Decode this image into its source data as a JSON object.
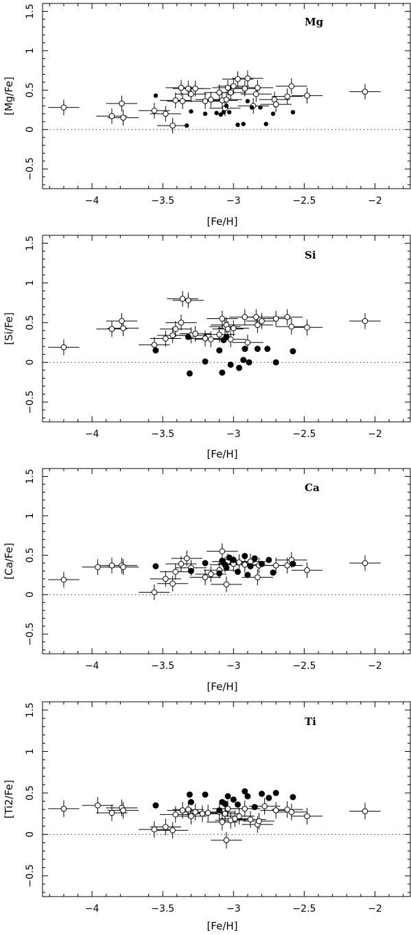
{
  "chart_data": [
    {
      "type": "scatter",
      "element": "Mg",
      "xlabel": "[Fe/H]",
      "ylabel": "[Mg/Fe]",
      "xlim": [
        -4.35,
        -1.75
      ],
      "ylim": [
        -0.75,
        1.6
      ],
      "xticks": [
        -4,
        -3.5,
        -3,
        -2.5,
        -2
      ],
      "xtick_labels": [
        "−4",
        "−3.5",
        "−3",
        "−2.5",
        "−2"
      ],
      "yticks": [
        -0.5,
        0,
        0.5,
        1,
        1.5
      ],
      "ytick_labels": [
        "−0.5",
        "0",
        "0.5",
        "1",
        "1.5"
      ],
      "grid": false,
      "reference_line": 0,
      "series": [
        {
          "marker": "open-circle-errorbars",
          "x": [
            -4.2,
            -3.86,
            -3.79,
            -3.78,
            -3.56,
            -3.48,
            -3.43,
            -3.41,
            -3.37,
            -3.36,
            -3.32,
            -3.3,
            -3.27,
            -3.2,
            -3.16,
            -3.1,
            -3.08,
            -3.06,
            -3.05,
            -3.04,
            -3.02,
            -3.0,
            -2.97,
            -2.92,
            -2.9,
            -2.86,
            -2.84,
            -2.83,
            -2.71,
            -2.7,
            -2.62,
            -2.59,
            -2.48,
            -2.07
          ],
          "y": [
            0.28,
            0.17,
            0.33,
            0.15,
            0.24,
            0.2,
            0.05,
            0.37,
            0.53,
            0.36,
            0.52,
            0.45,
            0.52,
            0.36,
            0.38,
            0.47,
            0.37,
            0.27,
            0.38,
            0.53,
            0.47,
            0.55,
            0.64,
            0.52,
            0.65,
            0.3,
            0.45,
            0.53,
            0.38,
            0.32,
            0.42,
            0.55,
            0.43,
            0.48
          ],
          "xerr": 0.11,
          "yerr": 0.1
        },
        {
          "marker": "filled-circle",
          "x": [
            -3.55,
            -3.33,
            -3.3,
            -3.2,
            -3.12,
            -3.09,
            -3.07,
            -3.05,
            -3.03,
            -2.97,
            -2.93,
            -2.9,
            -2.87,
            -2.81,
            -2.77,
            -2.72,
            -2.58
          ],
          "y": [
            0.43,
            0.05,
            0.23,
            0.2,
            0.21,
            0.19,
            0.22,
            0.3,
            0.22,
            0.06,
            0.07,
            0.36,
            0.28,
            0.28,
            0.07,
            0.2,
            0.22
          ]
        }
      ]
    },
    {
      "type": "scatter",
      "element": "Si",
      "xlabel": "[Fe/H]",
      "ylabel": "[Si/Fe]",
      "xlim": [
        -4.35,
        -1.75
      ],
      "ylim": [
        -0.75,
        1.6
      ],
      "xticks": [
        -4,
        -3.5,
        -3,
        -2.5,
        -2
      ],
      "xtick_labels": [
        "−4",
        "−3.5",
        "−3",
        "−2.5",
        "−2"
      ],
      "yticks": [
        -0.5,
        0,
        0.5,
        1,
        1.5
      ],
      "ytick_labels": [
        "−0.5",
        "0",
        "0.5",
        "1",
        "1.5"
      ],
      "grid": false,
      "reference_line": 0,
      "series": [
        {
          "marker": "open-circle-errorbars",
          "x": [
            -4.2,
            -3.86,
            -3.79,
            -3.78,
            -3.56,
            -3.48,
            -3.43,
            -3.41,
            -3.37,
            -3.36,
            -3.32,
            -3.3,
            -3.27,
            -3.2,
            -3.16,
            -3.1,
            -3.08,
            -3.06,
            -3.05,
            -3.04,
            -3.02,
            -3.0,
            -2.92,
            -2.9,
            -2.84,
            -2.83,
            -2.8,
            -2.7,
            -2.62,
            -2.59,
            -2.48,
            -2.07
          ],
          "y": [
            0.19,
            0.42,
            0.52,
            0.43,
            0.22,
            0.3,
            0.34,
            0.42,
            0.5,
            0.8,
            0.78,
            0.34,
            0.36,
            0.3,
            0.29,
            0.35,
            0.55,
            0.45,
            0.47,
            0.42,
            0.29,
            0.43,
            0.57,
            0.25,
            0.57,
            0.47,
            0.52,
            0.55,
            0.57,
            0.45,
            0.44,
            0.52
          ],
          "xerr": 0.11,
          "yerr": 0.1
        },
        {
          "marker": "filled-circle",
          "x": [
            -3.55,
            -3.32,
            -3.31,
            -3.2,
            -3.1,
            -3.08,
            -3.07,
            -3.05,
            -3.02,
            -2.96,
            -2.93,
            -2.92,
            -2.89,
            -2.83,
            -2.76,
            -2.7,
            -2.58
          ],
          "y": [
            0.15,
            0.32,
            -0.14,
            0.01,
            0.15,
            -0.13,
            0.28,
            0.32,
            -0.03,
            -0.07,
            0.03,
            0.17,
            0.0,
            0.17,
            0.17,
            0.0,
            0.14
          ]
        }
      ]
    },
    {
      "type": "scatter",
      "element": "Ca",
      "xlabel": "[Fe/H]",
      "ylabel": "[Ca/Fe]",
      "xlim": [
        -4.35,
        -1.75
      ],
      "ylim": [
        -0.75,
        1.6
      ],
      "xticks": [
        -4,
        -3.5,
        -3,
        -2.5,
        -2
      ],
      "xtick_labels": [
        "−4",
        "−3.5",
        "−3",
        "−2.5",
        "−2"
      ],
      "yticks": [
        -0.5,
        0,
        0.5,
        1,
        1.5
      ],
      "ytick_labels": [
        "−0.5",
        "0",
        "0.5",
        "1",
        "1.5"
      ],
      "grid": false,
      "reference_line": 0,
      "series": [
        {
          "marker": "open-circle-errorbars",
          "x": [
            -4.2,
            -3.96,
            -3.86,
            -3.79,
            -3.78,
            -3.56,
            -3.48,
            -3.43,
            -3.41,
            -3.37,
            -3.33,
            -3.3,
            -3.2,
            -3.16,
            -3.1,
            -3.08,
            -3.06,
            -3.05,
            -3.04,
            -3.0,
            -2.96,
            -2.92,
            -2.88,
            -2.83,
            -2.82,
            -2.7,
            -2.62,
            -2.59,
            -2.48,
            -2.07
          ],
          "y": [
            0.19,
            0.35,
            0.37,
            0.37,
            0.35,
            0.03,
            0.2,
            0.14,
            0.29,
            0.39,
            0.46,
            0.34,
            0.22,
            0.26,
            0.31,
            0.55,
            0.38,
            0.13,
            0.42,
            0.39,
            0.41,
            0.38,
            0.42,
            0.22,
            0.37,
            0.37,
            0.37,
            0.44,
            0.31,
            0.4
          ],
          "xerr": 0.11,
          "yerr": 0.1
        },
        {
          "marker": "filled-circle",
          "x": [
            -3.55,
            -3.3,
            -3.2,
            -3.1,
            -3.08,
            -3.06,
            -3.05,
            -3.03,
            -3.0,
            -2.97,
            -2.92,
            -2.9,
            -2.88,
            -2.85,
            -2.8,
            -2.75,
            -2.72,
            -2.58
          ],
          "y": [
            0.36,
            0.3,
            0.4,
            0.27,
            0.43,
            0.38,
            0.34,
            0.47,
            0.44,
            0.29,
            0.49,
            0.25,
            0.36,
            0.46,
            0.39,
            0.44,
            0.28,
            0.39
          ]
        }
      ]
    },
    {
      "type": "scatter",
      "element": "Ti",
      "xlabel": "[Fe/H]",
      "ylabel": "[Ti2/Fe]",
      "xlim": [
        -4.35,
        -1.75
      ],
      "ylim": [
        -0.75,
        1.6
      ],
      "xticks": [
        -4,
        -3.5,
        -3,
        -2.5,
        -2
      ],
      "xtick_labels": [
        "−4",
        "−3.5",
        "−3",
        "−2.5",
        "−2"
      ],
      "yticks": [
        -0.5,
        0,
        0.5,
        1,
        1.5
      ],
      "ytick_labels": [
        "−0.5",
        "0",
        "0.5",
        "1",
        "1.5"
      ],
      "grid": false,
      "reference_line": 0,
      "series": [
        {
          "marker": "open-circle-errorbars",
          "x": [
            -4.2,
            -3.96,
            -3.86,
            -3.79,
            -3.78,
            -3.56,
            -3.48,
            -3.43,
            -3.41,
            -3.36,
            -3.32,
            -3.3,
            -3.27,
            -3.22,
            -3.18,
            -3.1,
            -3.08,
            -3.06,
            -3.05,
            -3.04,
            -3.02,
            -2.99,
            -2.96,
            -2.92,
            -2.88,
            -2.83,
            -2.82,
            -2.78,
            -2.7,
            -2.62,
            -2.59,
            -2.48,
            -2.07
          ],
          "y": [
            0.31,
            0.35,
            0.26,
            0.32,
            0.29,
            0.06,
            0.09,
            0.05,
            0.24,
            0.29,
            0.3,
            0.22,
            0.27,
            0.25,
            0.26,
            0.27,
            0.15,
            0.25,
            -0.07,
            0.31,
            0.17,
            0.19,
            0.22,
            0.31,
            0.18,
            0.12,
            0.16,
            0.34,
            0.29,
            0.3,
            0.27,
            0.22,
            0.28
          ],
          "xerr": 0.11,
          "yerr": 0.1
        },
        {
          "marker": "filled-circle",
          "x": [
            -3.55,
            -3.31,
            -3.3,
            -3.2,
            -3.1,
            -3.08,
            -3.06,
            -3.04,
            -3.0,
            -2.97,
            -2.92,
            -2.9,
            -2.85,
            -2.8,
            -2.75,
            -2.7,
            -2.58
          ],
          "y": [
            0.35,
            0.48,
            0.39,
            0.48,
            0.29,
            0.39,
            0.37,
            0.46,
            0.42,
            0.36,
            0.52,
            0.46,
            0.33,
            0.49,
            0.44,
            0.5,
            0.45
          ]
        }
      ]
    }
  ]
}
